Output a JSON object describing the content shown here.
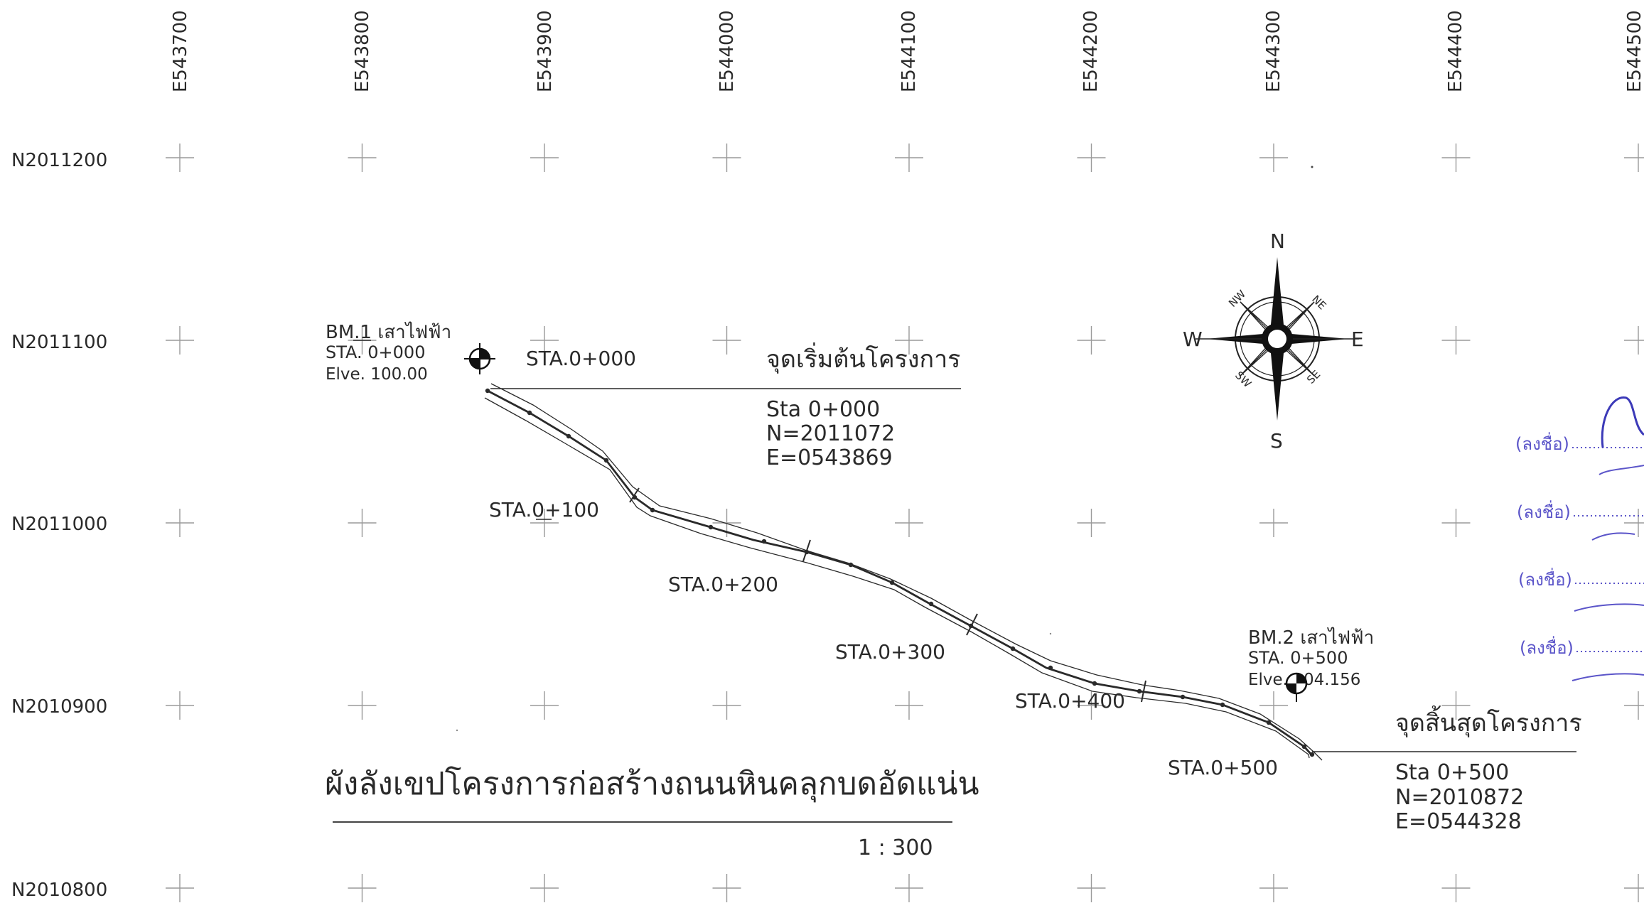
{
  "grid": {
    "eastings": [
      "E543700",
      "E543800",
      "E543900",
      "E544000",
      "E544100",
      "E544200",
      "E544300",
      "E544400",
      "E544500"
    ],
    "northings": [
      "N2011200",
      "N2011100",
      "N2011000",
      "N2010900",
      "N2010800"
    ]
  },
  "bm1": {
    "name": "BM.1 เสาไฟฟ้า",
    "sta": "STA. 0+000",
    "elev": "Elve. 100.00"
  },
  "bm2": {
    "name": "BM.2 เสาไฟฟ้า",
    "sta": "STA. 0+500",
    "elev": "Elve. 104.156"
  },
  "start": {
    "sta_label": "STA.0+000",
    "title": "จุดเริ่มต้นโครงการ",
    "sta": "Sta 0+000",
    "n": "N=2011072",
    "e": "E=0543869"
  },
  "end": {
    "title": "จุดสิ้นสุดโครงการ",
    "sta": "Sta 0+500",
    "n": "N=2010872",
    "e": "E=0544328"
  },
  "stations": [
    "STA.0+100",
    "STA.0+200",
    "STA.0+300",
    "STA.0+400",
    "STA.0+500"
  ],
  "compass": {
    "n": "N",
    "s": "S",
    "e": "E",
    "w": "W",
    "ne": "NE",
    "nw": "NW",
    "se": "SE",
    "sw": "SW"
  },
  "drawing_title": "ผังลังเขปโครงการก่อสร้างถนนหินคลุกบดอัดแน่น",
  "scale": "1 : 300",
  "signatures": [
    "(ลงชื่อ)",
    "(ลงชื่อ)",
    "(ลงชื่อ)",
    "(ลงชื่อ)"
  ],
  "colors": {
    "ink": "#2a2a2a",
    "signature": "#5b55c9",
    "grid": "#9a9a9a"
  }
}
